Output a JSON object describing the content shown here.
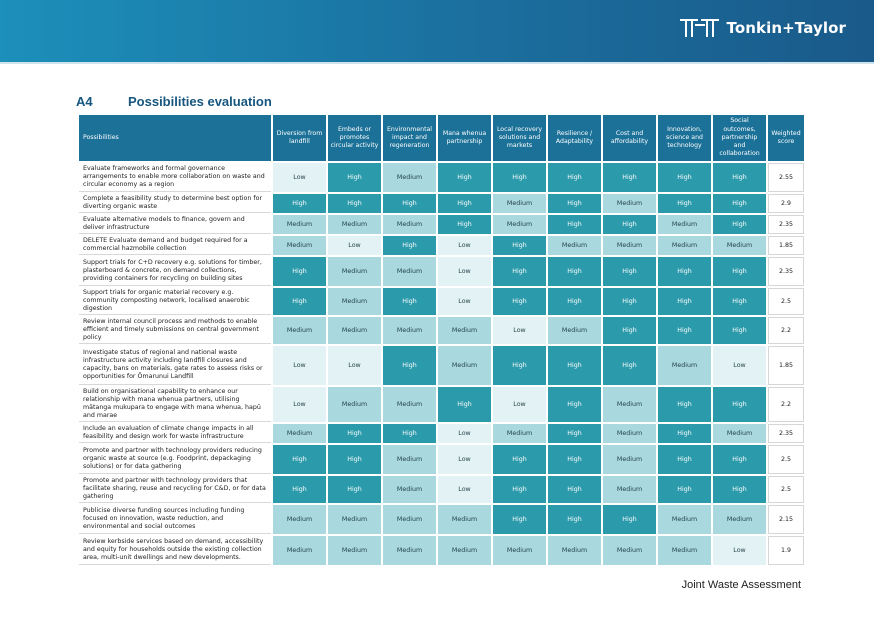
{
  "header": {
    "brand_name": "Tonkin+Taylor",
    "logo_icon": "tt-monogram-icon"
  },
  "section": {
    "number": "A4",
    "title": "Possibilities evaluation"
  },
  "table": {
    "columns": [
      "Possibilities",
      "Diversion from landfill",
      "Embeds or promotes circular activity",
      "Environmental impact and regeneration",
      "Mana whenua partnership",
      "Local recovery solutions and markets",
      "Resilience / Adaptability",
      "Cost and affordability",
      "Innovation, science and technology",
      "Social outcomes, partnership and collaboration",
      "Weighted score"
    ],
    "rows": [
      {
        "possibility": "Evaluate frameworks and formal governance arrangements to enable more collaboration on waste and circular economy as a region",
        "ratings": [
          "Low",
          "High",
          "Medium",
          "High",
          "High",
          "High",
          "High",
          "High",
          "High"
        ],
        "score": "2.55"
      },
      {
        "possibility": "Complete a feasibility study to determine best option for diverting organic waste",
        "ratings": [
          "High",
          "High",
          "High",
          "High",
          "Medium",
          "High",
          "Medium",
          "High",
          "High"
        ],
        "score": "2.9"
      },
      {
        "possibility": "Evaluate alternative models to finance, govern and deliver infrastructure",
        "ratings": [
          "Medium",
          "Medium",
          "Medium",
          "High",
          "Medium",
          "High",
          "High",
          "Medium",
          "High"
        ],
        "score": "2.35"
      },
      {
        "possibility": "DELETE Evaluate demand and budget required for a commercial hazmobile collection",
        "ratings": [
          "Medium",
          "Low",
          "High",
          "Low",
          "High",
          "Medium",
          "Medium",
          "Medium",
          "Medium"
        ],
        "score": "1.85"
      },
      {
        "possibility": "Support trials for C+D recovery e.g. solutions for timber, plasterboard & concrete, on demand collections, providing containers for recycling on building sites",
        "ratings": [
          "High",
          "Medium",
          "Medium",
          "Low",
          "High",
          "High",
          "High",
          "High",
          "High"
        ],
        "score": "2.35"
      },
      {
        "possibility": "Support trials for organic material recovery e.g. community composting network, localised anaerobic digestion",
        "ratings": [
          "High",
          "Medium",
          "High",
          "Low",
          "High",
          "High",
          "High",
          "High",
          "High"
        ],
        "score": "2.5"
      },
      {
        "possibility": "Review internal council process and methods to enable efficient and timely submissions on central government policy",
        "ratings": [
          "Medium",
          "Medium",
          "Medium",
          "Medium",
          "Low",
          "Medium",
          "High",
          "High",
          "High"
        ],
        "score": "2.2"
      },
      {
        "possibility": "Investigate status of regional and national waste infrastructure activity including landfill closures and capacity, bans on materials, gate rates to assess risks or opportunities for Ōmarunui Landfill",
        "ratings": [
          "Low",
          "Low",
          "High",
          "Medium",
          "High",
          "High",
          "High",
          "Medium",
          "Low"
        ],
        "score": "1.85"
      },
      {
        "possibility": "Build on organisational capability to enhance our relationship with mana whenua partners, utilising mātanga mukupara to engage with mana whenua, hapū and marae",
        "ratings": [
          "Low",
          "Medium",
          "Medium",
          "High",
          "Low",
          "High",
          "Medium",
          "High",
          "High"
        ],
        "score": "2.2"
      },
      {
        "possibility": "Include an evaluation of climate change impacts in all feasibility and design work for waste infrastructure",
        "ratings": [
          "Medium",
          "High",
          "High",
          "Low",
          "Medium",
          "High",
          "Medium",
          "High",
          "Medium"
        ],
        "score": "2.35"
      },
      {
        "possibility": "Promote and partner with technology providers reducing organic waste at source (e.g. Foodprint, depackaging solutions) or for data gathering",
        "ratings": [
          "High",
          "High",
          "Medium",
          "Low",
          "High",
          "High",
          "Medium",
          "High",
          "High"
        ],
        "score": "2.5"
      },
      {
        "possibility": "Promote and partner with technology providers that facilitate sharing, reuse and recycling for C&D, or for data gathering",
        "ratings": [
          "High",
          "High",
          "Medium",
          "Low",
          "High",
          "High",
          "Medium",
          "High",
          "High"
        ],
        "score": "2.5"
      },
      {
        "possibility": "Publicise diverse funding sources including funding focused on innovation, waste reduction, and environmental and social outcomes",
        "ratings": [
          "Medium",
          "Medium",
          "Medium",
          "Medium",
          "High",
          "High",
          "High",
          "Medium",
          "Medium"
        ],
        "score": "2.15"
      },
      {
        "possibility": "Review kerbside services based on demand, accessibility and equity for households outside the existing collection area, multi-unit dwellings and new developments.",
        "ratings": [
          "Medium",
          "Medium",
          "Medium",
          "Medium",
          "Medium",
          "Medium",
          "Medium",
          "Medium",
          "Low"
        ],
        "score": "1.9"
      }
    ]
  },
  "colors": {
    "high": "#2b9aaa",
    "medium": "#a9d8df",
    "low": "#e3f3f5",
    "header": "#1b7198",
    "title": "#16567f"
  },
  "footer": {
    "text": "Joint Waste Assessment"
  }
}
